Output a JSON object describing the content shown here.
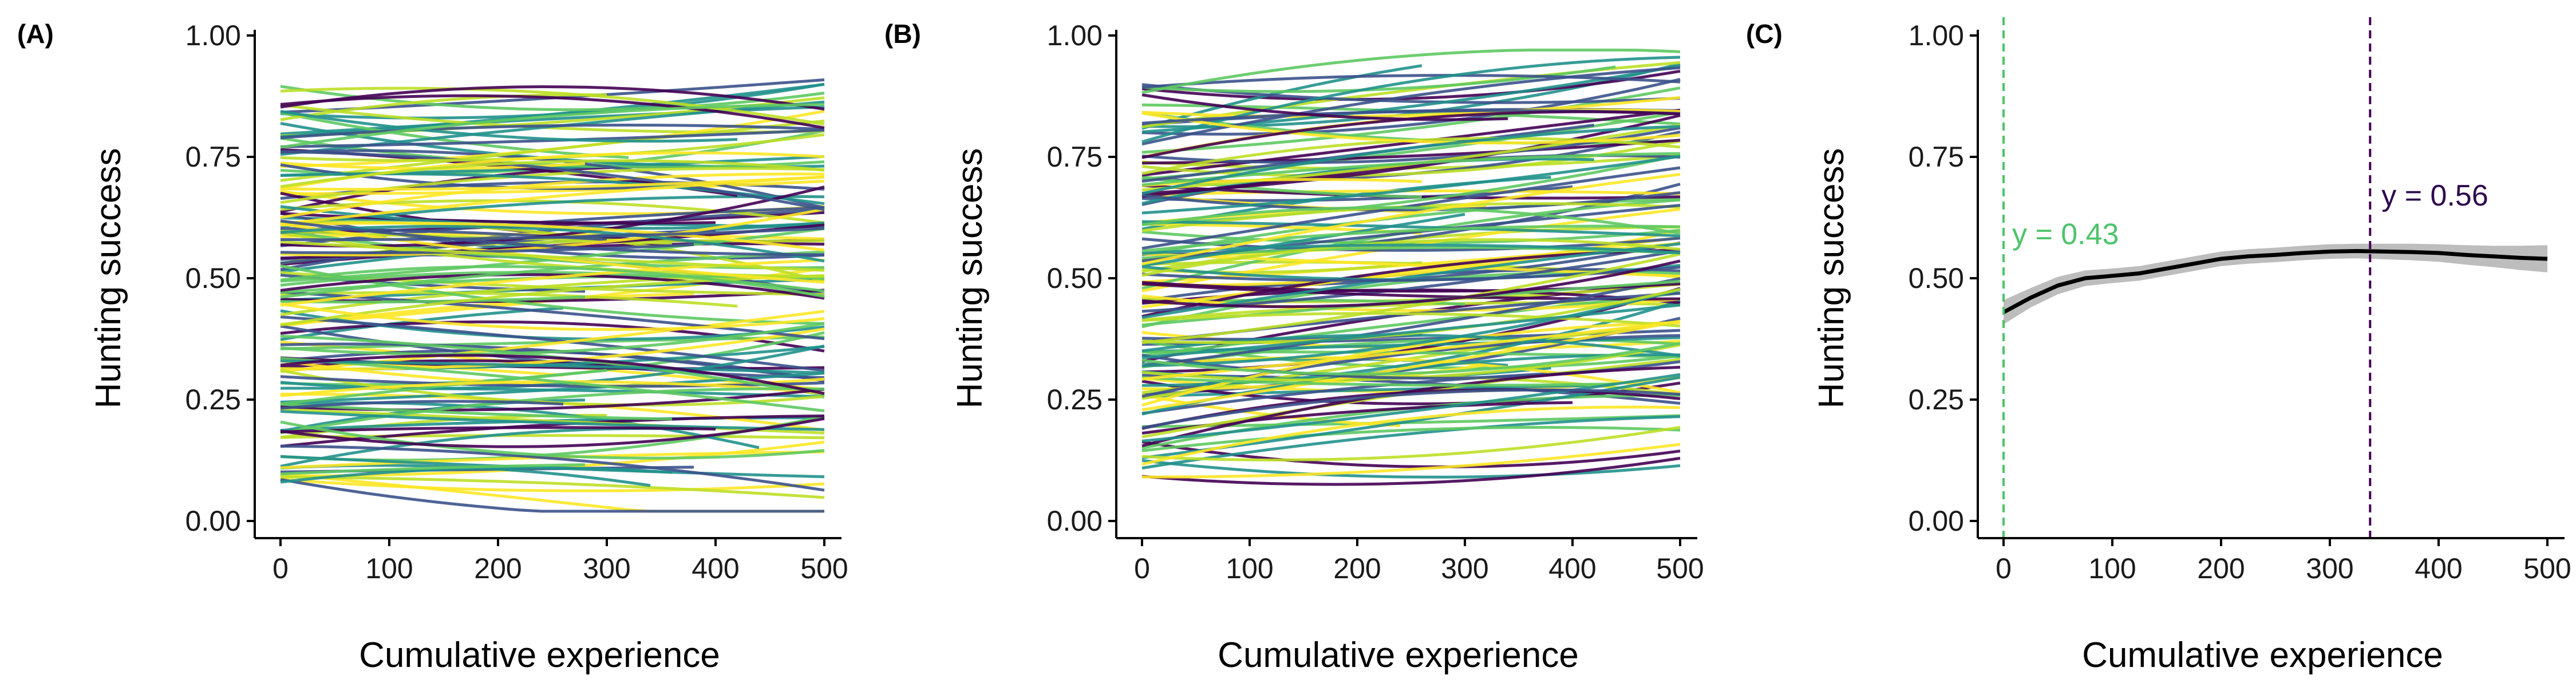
{
  "chart_data": [
    {
      "panel": "(A)",
      "type": "line",
      "xlabel": "Cumulative experience",
      "ylabel": "Hunting success",
      "xlim": [
        0,
        500
      ],
      "ylim": [
        0,
        1
      ],
      "xticks": [
        "0",
        "100",
        "200",
        "300",
        "400",
        "500"
      ],
      "yticks": [
        "0.00",
        "0.25",
        "0.50",
        "0.75",
        "1.00"
      ],
      "grid": false,
      "legend": "none",
      "series_count": 150,
      "palette": [
        "#440154",
        "#3b528b",
        "#21918c",
        "#5ec962",
        "#bddf26",
        "#fde725"
      ]
    },
    {
      "panel": "(B)",
      "type": "line",
      "xlabel": "Cumulative experience",
      "ylabel": "Hunting success",
      "xlim": [
        0,
        500
      ],
      "ylim": [
        0,
        1
      ],
      "xticks": [
        "0",
        "100",
        "200",
        "300",
        "400",
        "500"
      ],
      "yticks": [
        "0.00",
        "0.25",
        "0.50",
        "0.75",
        "1.00"
      ],
      "grid": false,
      "legend": "none",
      "series_count": 150,
      "palette": [
        "#440154",
        "#3b528b",
        "#21918c",
        "#5ec962",
        "#bddf26",
        "#fde725"
      ]
    },
    {
      "panel": "(C)",
      "type": "line",
      "xlabel": "Cumulative experience",
      "ylabel": "Hunting success",
      "xlim": [
        0,
        500
      ],
      "ylim": [
        0,
        1
      ],
      "xticks": [
        "0",
        "100",
        "200",
        "300",
        "400",
        "500"
      ],
      "yticks": [
        "0.00",
        "0.25",
        "0.50",
        "0.75",
        "1.00"
      ],
      "grid": false,
      "legend": "none",
      "series": [
        {
          "x": [
            0,
            25,
            50,
            75,
            100,
            125,
            150,
            175,
            200,
            225,
            250,
            275,
            300,
            325,
            350,
            375,
            400,
            425,
            450,
            475,
            500
          ],
          "y": [
            0.43,
            0.46,
            0.485,
            0.5,
            0.505,
            0.51,
            0.52,
            0.53,
            0.54,
            0.545,
            0.548,
            0.552,
            0.555,
            0.556,
            0.555,
            0.554,
            0.552,
            0.548,
            0.545,
            0.542,
            0.54
          ],
          "ci_halfwidth": [
            0.025,
            0.02,
            0.018,
            0.016,
            0.015,
            0.015,
            0.015,
            0.015,
            0.015,
            0.015,
            0.015,
            0.015,
            0.015,
            0.015,
            0.016,
            0.017,
            0.018,
            0.02,
            0.022,
            0.025,
            0.028
          ],
          "color": "#000000",
          "ribbon_color": "#bdbdbd"
        }
      ],
      "vlines": [
        {
          "x": 0,
          "color": "#4dc36b"
        },
        {
          "x": 337,
          "color": "#440154"
        }
      ],
      "annotations": [
        {
          "text": "y = 0.43",
          "color": "#4dc36b"
        },
        {
          "text": "y = 0.56",
          "color": "#2d0a4e"
        }
      ]
    }
  ]
}
